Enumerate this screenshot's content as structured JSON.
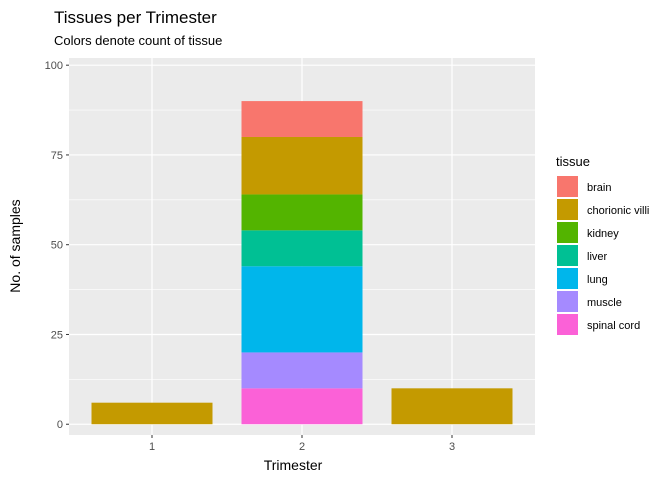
{
  "chart_data": {
    "type": "bar",
    "stacked": true,
    "title": "Tissues per Trimester",
    "subtitle": "Colors denote count of tissue",
    "xlabel": "Trimester",
    "ylabel": "No. of samples",
    "categories": [
      "1",
      "2",
      "3"
    ],
    "ylim": [
      -3,
      102
    ],
    "yticks": [
      0,
      25,
      50,
      75,
      100
    ],
    "grid": true,
    "legend": {
      "title": "tissue",
      "position": "right"
    },
    "series": [
      {
        "name": "brain",
        "color": "#F8766D",
        "values": [
          0,
          10,
          0
        ]
      },
      {
        "name": "chorionic villi",
        "color": "#C49A00",
        "values": [
          6,
          16,
          10
        ]
      },
      {
        "name": "kidney",
        "color": "#53B400",
        "values": [
          0,
          10,
          0
        ]
      },
      {
        "name": "liver",
        "color": "#00C094",
        "values": [
          0,
          10,
          0
        ]
      },
      {
        "name": "lung",
        "color": "#00B6EB",
        "values": [
          0,
          24,
          0
        ]
      },
      {
        "name": "muscle",
        "color": "#A58AFF",
        "values": [
          0,
          10,
          0
        ]
      },
      {
        "name": "spinal cord",
        "color": "#FB61D7",
        "values": [
          0,
          10,
          0
        ]
      }
    ]
  }
}
